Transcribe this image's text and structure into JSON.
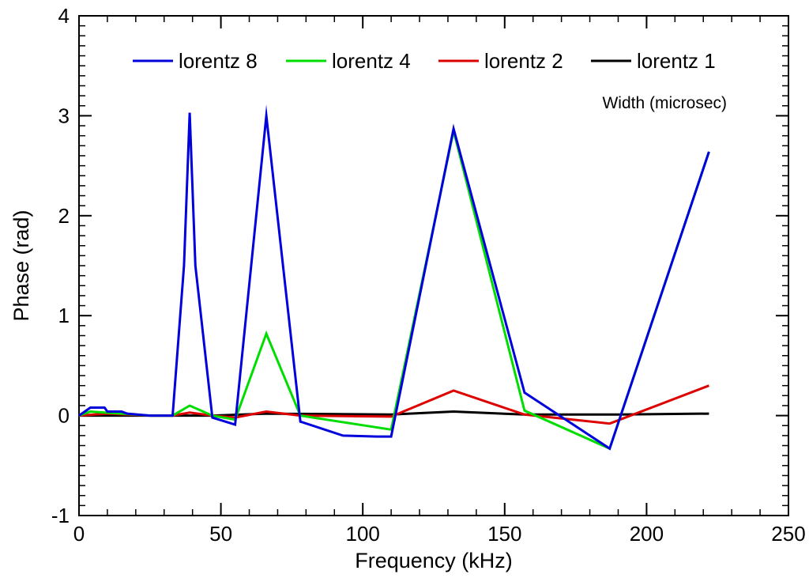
{
  "chart_data": {
    "type": "line",
    "title": "",
    "xlabel": "Frequency (kHz)",
    "ylabel": "Phase (rad)",
    "xlim": [
      0,
      250
    ],
    "ylim": [
      -1,
      4
    ],
    "xticks": [
      0,
      50,
      100,
      150,
      200,
      250
    ],
    "yticks": [
      -1,
      0,
      1,
      2,
      3,
      4
    ],
    "grid": false,
    "legend_placement": "top",
    "annotations": [
      "Width (microsec)"
    ],
    "series": [
      {
        "name": "lorentz 8",
        "color": "#0000dd",
        "x": [
          0,
          4,
          5,
          9,
          10,
          15,
          17,
          25,
          33,
          37,
          39,
          41,
          47,
          55,
          66,
          78,
          93,
          105,
          110,
          132,
          157,
          187,
          222
        ],
        "y": [
          0,
          0.08,
          0.08,
          0.08,
          0.04,
          0.04,
          0.02,
          0.0,
          0.0,
          1.5,
          3.03,
          1.5,
          -0.02,
          -0.09,
          3.0,
          -0.06,
          -0.2,
          -0.21,
          -0.21,
          2.87,
          0.23,
          -0.33,
          2.64
        ]
      },
      {
        "name": "lorentz 4",
        "color": "#00dd00",
        "x": [
          0,
          4,
          9,
          15,
          25,
          33,
          39,
          47,
          55,
          66,
          78,
          110,
          132,
          157,
          187,
          222
        ],
        "y": [
          0,
          0.04,
          0.03,
          0.02,
          0.0,
          0.0,
          0.1,
          0.0,
          -0.04,
          0.82,
          0.0,
          -0.14,
          2.85,
          0.05,
          -0.33,
          2.64
        ]
      },
      {
        "name": "lorentz 2",
        "color": "#dd0000",
        "x": [
          0,
          10,
          25,
          33,
          39,
          47,
          55,
          66,
          78,
          110,
          132,
          157,
          187,
          222
        ],
        "y": [
          0,
          0.02,
          0.0,
          0.0,
          0.03,
          0.0,
          -0.02,
          0.04,
          0.0,
          -0.01,
          0.25,
          0.01,
          -0.08,
          0.3
        ]
      },
      {
        "name": "lorentz 1",
        "color": "#000000",
        "x": [
          0,
          33,
          47,
          66,
          110,
          132,
          157,
          190,
          222
        ],
        "y": [
          0,
          0.0,
          0.0,
          0.02,
          0.01,
          0.04,
          0.01,
          0.01,
          0.02
        ]
      }
    ]
  }
}
